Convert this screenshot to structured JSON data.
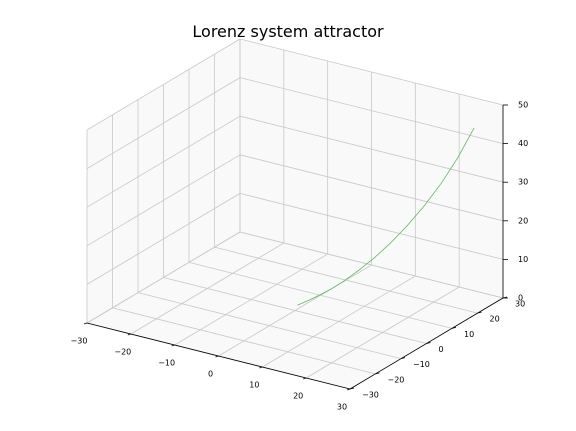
{
  "chart_data": {
    "type": "line",
    "projection": "3d",
    "title": "Lorenz system attractor",
    "xlabel": "",
    "ylabel": "",
    "zlabel": "",
    "xlim": [
      -30,
      30
    ],
    "ylim": [
      -30,
      30
    ],
    "zlim": [
      0,
      50
    ],
    "x_ticks": [
      -30,
      -20,
      -10,
      0,
      10,
      20,
      30
    ],
    "y_ticks": [
      -30,
      -20,
      -10,
      0,
      10,
      20,
      30
    ],
    "z_ticks": [
      0,
      10,
      20,
      30,
      40,
      50
    ],
    "grid": true,
    "legend": "none",
    "series": [
      {
        "color": "#5cb85c",
        "x": [
          0,
          1.5,
          3.2,
          5.2,
          7.4,
          9.8,
          12.5,
          15.4,
          18.4,
          21.5,
          24.6,
          27.6,
          30.5
        ],
        "y": [
          1,
          2.4,
          3.8,
          5.2,
          6.6,
          8.0,
          9.4,
          10.8,
          12.2,
          13.6,
          15.0,
          16.4,
          17.8
        ],
        "z": [
          1.0,
          2.0,
          3.3,
          5.0,
          7.2,
          10.0,
          13.4,
          17.5,
          22.3,
          27.8,
          34.0,
          41.0,
          49.0
        ]
      }
    ]
  }
}
